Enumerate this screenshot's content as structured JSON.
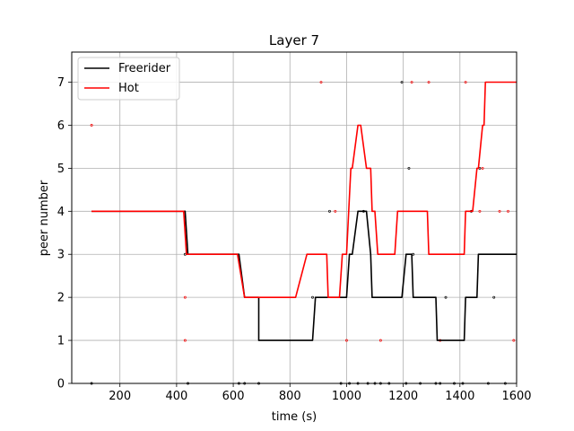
{
  "chart_data": {
    "type": "line",
    "title": "Layer 7",
    "xlabel": "time (s)",
    "ylabel": "peer number",
    "xlim": [
      30,
      1600
    ],
    "ylim": [
      0,
      7.7
    ],
    "xticks": [
      200,
      400,
      600,
      800,
      1000,
      1200,
      1400,
      1600
    ],
    "yticks": [
      0,
      1,
      2,
      3,
      4,
      5,
      6,
      7
    ],
    "grid": true,
    "legend": "top-left",
    "series": [
      {
        "name": "Freerider",
        "color": "#000000",
        "x": [
          100,
          430,
          440,
          620,
          640,
          690,
          690,
          880,
          890,
          1000,
          1010,
          1020,
          1040,
          1070,
          1085,
          1090,
          1100,
          1195,
          1210,
          1230,
          1235,
          1240,
          1315,
          1320,
          1415,
          1420,
          1460,
          1465,
          1600
        ],
        "y": [
          4,
          4,
          3,
          3,
          2,
          2,
          1,
          1,
          2,
          2,
          3,
          3,
          4,
          4,
          3,
          2,
          2,
          2,
          3,
          3,
          2,
          2,
          2,
          1,
          1,
          2,
          2,
          3,
          3
        ]
      },
      {
        "name": "Hot",
        "color": "#ff0000",
        "x": [
          100,
          425,
          435,
          615,
          640,
          820,
          860,
          930,
          935,
          975,
          985,
          1000,
          1015,
          1020,
          1040,
          1050,
          1070,
          1085,
          1090,
          1100,
          1110,
          1170,
          1180,
          1185,
          1285,
          1290,
          1415,
          1420,
          1440,
          1445,
          1460,
          1465,
          1480,
          1485,
          1490,
          1600
        ],
        "y": [
          4,
          4,
          3,
          3,
          2,
          2,
          3,
          3,
          2,
          2,
          3,
          3,
          5,
          5,
          6,
          6,
          5,
          5,
          4,
          4,
          3,
          3,
          4,
          4,
          4,
          3,
          3,
          4,
          4,
          4,
          5,
          5,
          6,
          6,
          7,
          7
        ]
      }
    ],
    "markers": {
      "black": [
        [
          100,
          0
        ],
        [
          430,
          3
        ],
        [
          440,
          0
        ],
        [
          620,
          0
        ],
        [
          640,
          0
        ],
        [
          690,
          0
        ],
        [
          880,
          2
        ],
        [
          940,
          4
        ],
        [
          980,
          0
        ],
        [
          1010,
          0
        ],
        [
          1040,
          0
        ],
        [
          1060,
          4
        ],
        [
          1075,
          0
        ],
        [
          1100,
          0
        ],
        [
          1120,
          0
        ],
        [
          1150,
          0
        ],
        [
          1195,
          7
        ],
        [
          1210,
          0
        ],
        [
          1220,
          5
        ],
        [
          1235,
          3
        ],
        [
          1260,
          0
        ],
        [
          1315,
          0
        ],
        [
          1330,
          0
        ],
        [
          1350,
          2
        ],
        [
          1380,
          0
        ],
        [
          1410,
          0
        ],
        [
          1440,
          4
        ],
        [
          1470,
          5
        ],
        [
          1500,
          0
        ],
        [
          1520,
          2
        ],
        [
          1560,
          0
        ]
      ],
      "red": [
        [
          100,
          6
        ],
        [
          430,
          2
        ],
        [
          430,
          1
        ],
        [
          910,
          7
        ],
        [
          960,
          4
        ],
        [
          1000,
          1
        ],
        [
          1120,
          1
        ],
        [
          1230,
          7
        ],
        [
          1290,
          7
        ],
        [
          1330,
          1
        ],
        [
          1420,
          7
        ],
        [
          1470,
          4
        ],
        [
          1480,
          5
        ],
        [
          1540,
          4
        ],
        [
          1570,
          4
        ],
        [
          1590,
          1
        ]
      ]
    }
  }
}
